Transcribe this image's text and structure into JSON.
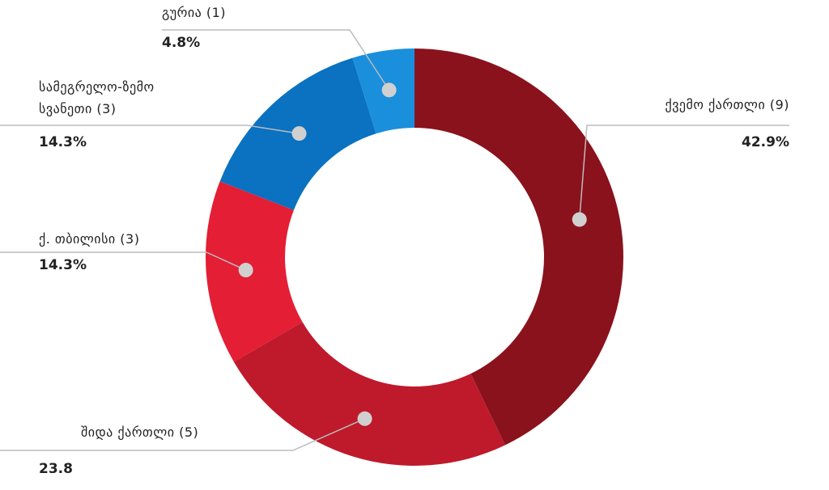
{
  "chart_data": {
    "type": "donut",
    "categories": [
      "ქვემო ქართლი (9)",
      "შიდა ქართლი (5)",
      "ქ. თბილისი (3)",
      "სამეგრელო-ზემო სვანეთი (3)",
      "გურია (1)"
    ],
    "values": [
      42.9,
      23.8,
      14.3,
      14.3,
      4.8
    ],
    "value_labels": [
      "42.9%",
      "23.8",
      "14.3%",
      "14.3%",
      "4.8%"
    ],
    "colors": [
      "#8a121d",
      "#be1a2b",
      "#e41e35",
      "#0a72c0",
      "#1a8fdc"
    ]
  }
}
